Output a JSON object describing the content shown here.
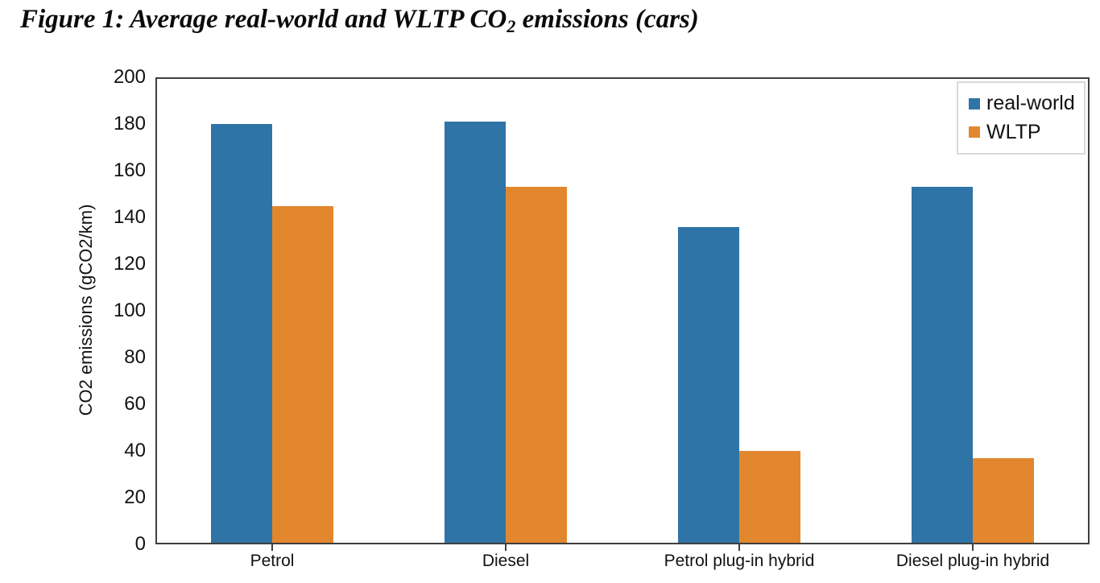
{
  "figure_title": {
    "prefix": "Figure 1: Average real-world and WLTP CO",
    "subscript": "2",
    "suffix": " emissions (cars)"
  },
  "chart_data": {
    "type": "bar",
    "title": "Figure 1: Average real-world and WLTP CO2 emissions (cars)",
    "categories": [
      "Petrol",
      "Diesel",
      "Petrol plug-in hybrid",
      "Diesel plug-in hybrid"
    ],
    "series": [
      {
        "name": "real-world",
        "color": "#2F74A7",
        "values": [
          180,
          181,
          136,
          153
        ]
      },
      {
        "name": "WLTP",
        "color": "#E2872D",
        "values": [
          145,
          153,
          40,
          37
        ]
      }
    ],
    "xlabel": "",
    "ylabel": "CO2 emissions (gCO2/km)",
    "ylim": [
      0,
      200
    ],
    "yticks": [
      0,
      20,
      40,
      60,
      80,
      100,
      120,
      140,
      160,
      180,
      200
    ],
    "grid": false,
    "legend": {
      "position": "top-right",
      "entries": [
        "real-world",
        "WLTP"
      ]
    }
  },
  "colors": {
    "plot_border": "#3F3F3F",
    "legend_border": "#D9D9D9",
    "text": "#121212",
    "background": "#FFFFFF"
  }
}
